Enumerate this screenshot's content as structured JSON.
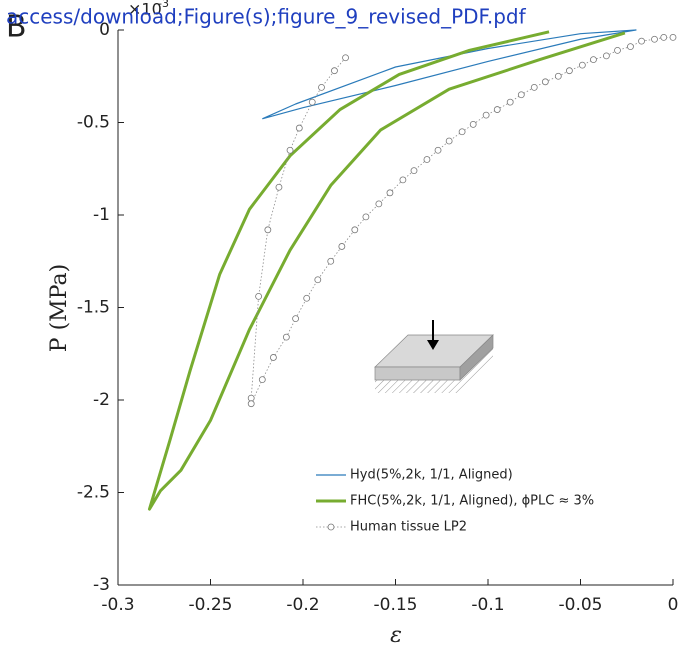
{
  "panel_label": "B",
  "source_text": "access/download;Figure(s);figure_9_revised_PDF.pdf",
  "chart_data": {
    "type": "line",
    "exponent_label": "×10",
    "exponent_power": "-3",
    "xlabel": "ε",
    "ylabel": "P (MPa)",
    "xlim": [
      -0.3,
      0
    ],
    "ylim": [
      -3,
      0
    ],
    "xticks": [
      -0.3,
      -0.25,
      -0.2,
      -0.15,
      -0.1,
      -0.05,
      0
    ],
    "yticks": [
      -3,
      -2.5,
      -2,
      -1.5,
      -1,
      -0.5,
      0
    ],
    "legend_position": "lower right",
    "series": [
      {
        "name": "Hyd(5%,2k, 1/1, Aligned)",
        "color": "#2b7bba",
        "width": 1.2,
        "dash": "none",
        "markers": false,
        "x": [
          -0.222,
          -0.2,
          -0.15,
          -0.1,
          -0.05,
          -0.02,
          -0.05,
          -0.1,
          -0.15,
          -0.204,
          -0.222
        ],
        "values": [
          -0.48,
          -0.42,
          -0.3,
          -0.17,
          -0.05,
          0,
          -0.02,
          -0.1,
          -0.2,
          -0.4,
          -0.48
        ]
      },
      {
        "name": "FHC(5%,2k, 1/1, Aligned), ϕPLC ≈ 3%",
        "color": "#77ac30",
        "width": 3,
        "dash": "none",
        "markers": false,
        "x": [
          -0.026,
          -0.072,
          -0.121,
          -0.158,
          -0.185,
          -0.207,
          -0.229,
          -0.25,
          -0.266,
          -0.277,
          -0.283,
          -0.272,
          -0.261,
          -0.245,
          -0.229,
          -0.207,
          -0.18,
          -0.148,
          -0.11,
          -0.067
        ],
        "values": [
          -0.016,
          -0.16,
          -0.32,
          -0.54,
          -0.84,
          -1.19,
          -1.62,
          -2.11,
          -2.38,
          -2.49,
          -2.59,
          -2.22,
          -1.84,
          -1.32,
          -0.97,
          -0.68,
          -0.43,
          -0.24,
          -0.11,
          -0.01
        ]
      },
      {
        "name": "Human tissue LP2",
        "color": "#8a8a8a",
        "width": 0.8,
        "dash": "1.5 2",
        "markers": true,
        "x": [
          -0.177,
          -0.183,
          -0.19,
          -0.195,
          -0.202,
          -0.207,
          -0.213,
          -0.219,
          -0.224,
          -0.228,
          -0.228,
          -0.222,
          -0.216,
          -0.209,
          -0.204,
          -0.198,
          -0.192,
          -0.185,
          -0.179,
          -0.172,
          -0.166,
          -0.159,
          -0.153,
          -0.146,
          -0.14,
          -0.133,
          -0.127,
          -0.121,
          -0.114,
          -0.108,
          -0.101,
          -0.095,
          -0.088,
          -0.082,
          -0.075,
          -0.069,
          -0.062,
          -0.056,
          -0.049,
          -0.043,
          -0.036,
          -0.03,
          -0.023,
          -0.017,
          -0.01,
          -0.005,
          0
        ],
        "values": [
          -0.15,
          -0.22,
          -0.31,
          -0.39,
          -0.53,
          -0.65,
          -0.85,
          -1.08,
          -1.44,
          -1.99,
          -2.02,
          -1.89,
          -1.77,
          -1.66,
          -1.56,
          -1.45,
          -1.35,
          -1.25,
          -1.17,
          -1.08,
          -1.01,
          -0.94,
          -0.88,
          -0.81,
          -0.76,
          -0.7,
          -0.65,
          -0.6,
          -0.55,
          -0.51,
          -0.46,
          -0.43,
          -0.39,
          -0.35,
          -0.31,
          -0.28,
          -0.25,
          -0.22,
          -0.19,
          -0.16,
          -0.14,
          -0.11,
          -0.09,
          -0.06,
          -0.05,
          -0.04,
          -0.04
        ]
      }
    ]
  }
}
